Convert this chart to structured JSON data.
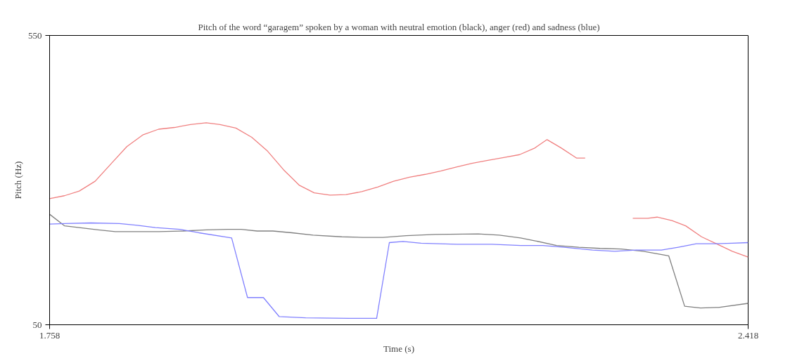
{
  "chart_data": {
    "type": "line",
    "title": "Pitch of the word “garagem” spoken by a woman with neutral emotion (black), anger (red) and sadness (blue)",
    "xlabel": "Time (s)",
    "ylabel": "Pitch (Hz)",
    "xlim": [
      1.758,
      2.418
    ],
    "ylim": [
      50,
      550
    ],
    "xticks": [
      1.758,
      2.418
    ],
    "yticks": [
      50,
      550
    ],
    "marker": "none",
    "line_style": "solid",
    "series": [
      {
        "color": "#f08080",
        "x": [
          1.758,
          1.772,
          1.786,
          1.801,
          1.816,
          1.831,
          1.846,
          1.861,
          1.876,
          1.891,
          1.906,
          1.919,
          1.934,
          1.949,
          1.964,
          1.979,
          1.994,
          2.008,
          2.023,
          2.038,
          2.053,
          2.068,
          2.083,
          2.098,
          2.113,
          2.128,
          2.143,
          2.157,
          2.172,
          2.187,
          2.202,
          2.216,
          2.228,
          2.241,
          2.256,
          2.264,
          2.285,
          2.309,
          2.323,
          2.332,
          2.346,
          2.359,
          2.374,
          2.388,
          2.403,
          2.418
        ],
        "values": [
          268,
          273,
          281,
          298,
          328,
          358,
          378,
          388,
          391,
          396,
          399,
          396,
          390,
          374,
          350,
          318,
          291,
          278,
          274,
          275,
          280,
          288,
          298,
          305,
          310,
          316,
          323,
          329,
          334,
          339,
          344,
          355,
          370,
          356,
          338,
          338,
          null,
          234,
          234,
          236,
          230,
          221,
          202,
          190,
          177,
          167
        ]
      },
      {
        "color": "#808080",
        "x": [
          1.758,
          1.772,
          1.786,
          1.804,
          1.82,
          1.838,
          1.861,
          1.884,
          1.906,
          1.926,
          1.939,
          1.954,
          1.969,
          1.987,
          2.007,
          2.034,
          2.054,
          2.073,
          2.095,
          2.122,
          2.163,
          2.183,
          2.203,
          2.217,
          2.237,
          2.258,
          2.278,
          2.298,
          2.319,
          2.343,
          2.358,
          2.373,
          2.39,
          2.418
        ],
        "values": [
          241,
          221,
          218,
          214,
          211,
          211,
          211,
          212,
          214,
          215,
          215,
          212,
          212,
          209,
          205,
          202,
          201,
          201,
          204,
          206,
          207,
          205,
          200,
          195,
          187,
          184,
          182,
          181,
          177,
          169,
          82,
          79,
          80,
          87
        ]
      },
      {
        "color": "#8080ff",
        "x": [
          1.758,
          1.772,
          1.797,
          1.824,
          1.841,
          1.858,
          1.881,
          1.899,
          1.93,
          1.945,
          1.96,
          1.975,
          2.0,
          2.041,
          2.067,
          2.079,
          2.092,
          2.109,
          2.143,
          2.176,
          2.203,
          2.224,
          2.244,
          2.271,
          2.292,
          2.312,
          2.336,
          2.352,
          2.369,
          2.386,
          2.403,
          2.418
        ],
        "values": [
          224,
          225,
          226,
          225,
          222,
          218,
          215,
          209,
          200,
          97,
          97,
          64,
          62,
          61,
          61,
          192,
          194,
          191,
          189,
          189,
          187,
          187,
          184,
          179,
          177,
          179,
          179,
          184,
          190,
          190,
          191,
          192
        ]
      }
    ]
  }
}
